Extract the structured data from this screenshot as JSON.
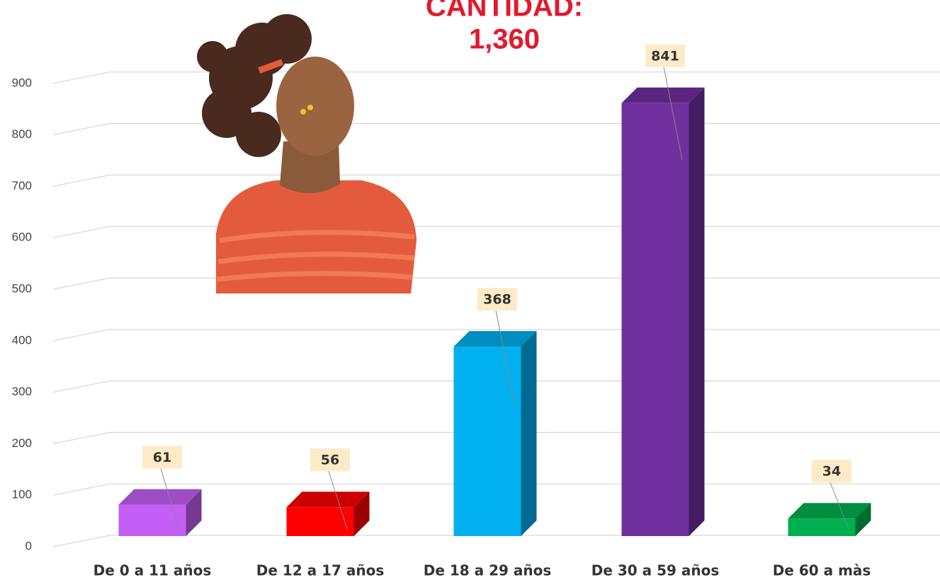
{
  "chart_data": {
    "type": "bar3d",
    "title": [
      "CANTIDAD:",
      "1,360"
    ],
    "categories": [
      "De 0 a 11 años",
      "De 12 a 17 años",
      "De 18 a 29 años",
      "De 30 a 59 años",
      "De 60 a màs"
    ],
    "values": [
      61,
      56,
      368,
      841,
      34
    ],
    "colors": [
      "#c45ff5",
      "#ff0000",
      "#00b0f0",
      "#7030a0",
      "#00b050"
    ],
    "ylim": [
      0,
      1000
    ],
    "yticks": [
      0,
      100,
      200,
      300,
      400,
      500,
      600,
      700,
      800,
      900
    ],
    "grid": true
  }
}
